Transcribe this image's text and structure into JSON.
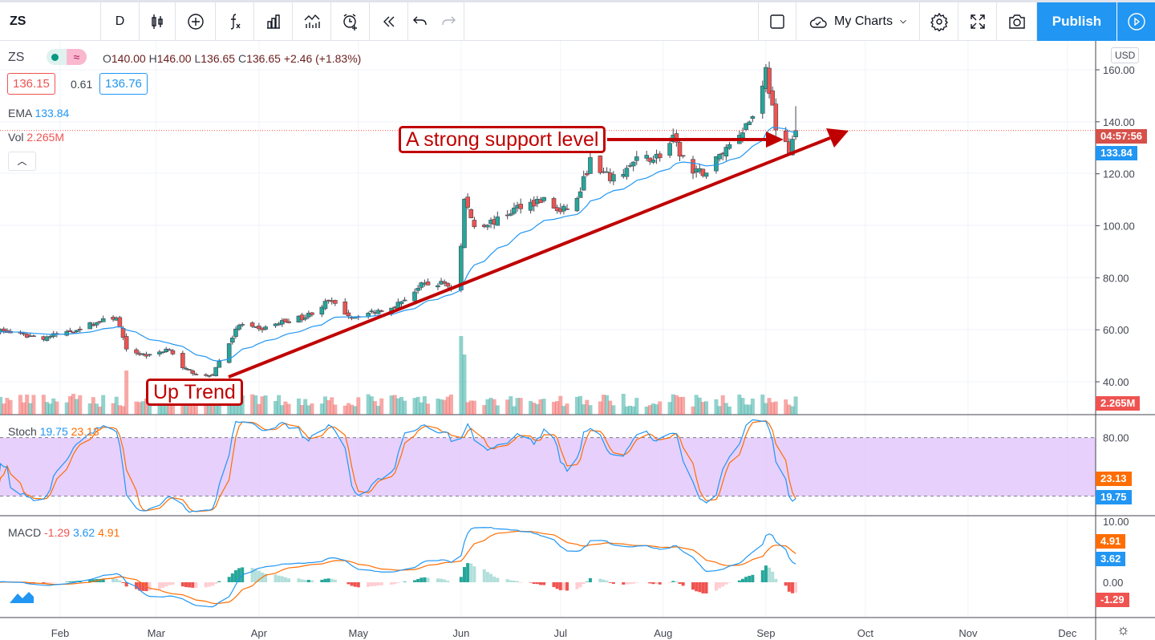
{
  "toolbar": {
    "symbol": "ZS",
    "interval": "D",
    "my_charts": "My Charts",
    "publish": "Publish",
    "icons": [
      "candles-icon",
      "add-circle-icon",
      "fx-icon",
      "compare-bars-icon",
      "indicators-icon",
      "alarm-add-icon",
      "replay-icon",
      "undo-icon",
      "redo-icon"
    ],
    "right_icons": [
      "layout-square-icon",
      "cloud-icon",
      "chevron-down-icon",
      "gear-icon",
      "fullscreen-icon",
      "camera-icon",
      "play-circle-icon"
    ]
  },
  "legend": {
    "symbol": "ZS",
    "o_label": "O",
    "o": "140.00",
    "h_label": "H",
    "h": "146.00",
    "l_label": "L",
    "l": "136.65",
    "c_label": "C",
    "c": "136.65",
    "change": "+2.46 (+1.83%)",
    "bid": "136.15",
    "spread": "0.61",
    "ask": "136.76",
    "ema_label": "EMA",
    "ema": "133.84",
    "vol_label": "Vol",
    "vol": "2.265M"
  },
  "stoch": {
    "label": "Stoch",
    "k": "19.75",
    "d": "23.13"
  },
  "macd": {
    "label": "MACD",
    "hist": "-1.29",
    "macd": "3.62",
    "signal": "4.91"
  },
  "axis": {
    "currency": "USD",
    "price_ticks": [
      "160.00",
      "140.00",
      "120.00",
      "100.00",
      "80.00",
      "60.00",
      "40.00"
    ],
    "countdown": "04:57:56",
    "ema_tag": "133.84",
    "vol_tag": "2.265M",
    "stoch_ticks": [
      "80.00"
    ],
    "stoch_k_tag": "19.75",
    "stoch_d_tag": "23.13",
    "macd_ticks": [
      "10.00",
      "0.00"
    ],
    "macd_signal_tag": "4.91",
    "macd_tag": "3.62",
    "macd_hist_tag": "-1.29"
  },
  "time_axis": [
    "Feb",
    "Mar",
    "Apr",
    "May",
    "Jun",
    "Jul",
    "Aug",
    "Sep",
    "Oct",
    "Nov",
    "Dec"
  ],
  "annotations": {
    "up_trend": "Up Trend",
    "support": "A strong support level"
  },
  "colors": {
    "up": "#26a69a",
    "down": "#ef5350",
    "ema": "#2196f3",
    "stoch_k": "#2196f3",
    "stoch_d": "#ff6d00",
    "stoch_band": "#e1c4fb",
    "annotation": "#c00000",
    "publish": "#2196f3"
  },
  "chart_data": {
    "type": "candlestick",
    "symbol": "ZS",
    "ylim": [
      30,
      165
    ],
    "close_keypoints": [
      [
        "2020-01-13",
        60
      ],
      [
        "2020-01-20",
        58
      ],
      [
        "2020-01-27",
        57
      ],
      [
        "2020-02-03",
        59
      ],
      [
        "2020-02-10",
        62
      ],
      [
        "2020-02-18",
        65
      ],
      [
        "2020-02-21",
        52
      ],
      [
        "2020-02-28",
        50
      ],
      [
        "2020-03-05",
        53
      ],
      [
        "2020-03-09",
        45
      ],
      [
        "2020-03-16",
        42
      ],
      [
        "2020-03-18",
        43
      ],
      [
        "2020-03-23",
        55
      ],
      [
        "2020-03-26",
        62
      ],
      [
        "2020-04-01",
        60
      ],
      [
        "2020-04-08",
        63
      ],
      [
        "2020-04-15",
        65
      ],
      [
        "2020-04-22",
        71
      ],
      [
        "2020-04-29",
        65
      ],
      [
        "2020-05-06",
        67
      ],
      [
        "2020-05-13",
        70
      ],
      [
        "2020-05-20",
        77
      ],
      [
        "2020-05-27",
        78
      ],
      [
        "2020-05-29",
        76
      ],
      [
        "2020-06-01",
        92
      ],
      [
        "2020-06-02",
        110
      ],
      [
        "2020-06-05",
        100
      ],
      [
        "2020-06-12",
        102
      ],
      [
        "2020-06-19",
        108
      ],
      [
        "2020-06-26",
        110
      ],
      [
        "2020-07-01",
        105
      ],
      [
        "2020-07-06",
        110
      ],
      [
        "2020-07-10",
        125
      ],
      [
        "2020-07-13",
        120
      ],
      [
        "2020-07-17",
        118
      ],
      [
        "2020-07-24",
        125
      ],
      [
        "2020-07-31",
        127
      ],
      [
        "2020-08-04",
        133
      ],
      [
        "2020-08-06",
        128
      ],
      [
        "2020-08-10",
        120
      ],
      [
        "2020-08-14",
        121
      ],
      [
        "2020-08-20",
        130
      ],
      [
        "2020-08-24",
        136
      ],
      [
        "2020-08-28",
        142
      ],
      [
        "2020-09-01",
        160
      ],
      [
        "2020-09-03",
        145
      ],
      [
        "2020-09-04",
        135
      ],
      [
        "2020-09-08",
        130
      ],
      [
        "2020-09-10",
        136.65
      ]
    ],
    "volume_spikes_m": [
      [
        "2020-02-21",
        5.5
      ],
      [
        "2020-06-01",
        9.8
      ],
      [
        "2020-06-02",
        7.5
      ],
      [
        "2020-03-23",
        3.2
      ]
    ],
    "indicators": [
      "EMA",
      "Volume",
      "Stochastic",
      "MACD"
    ]
  }
}
